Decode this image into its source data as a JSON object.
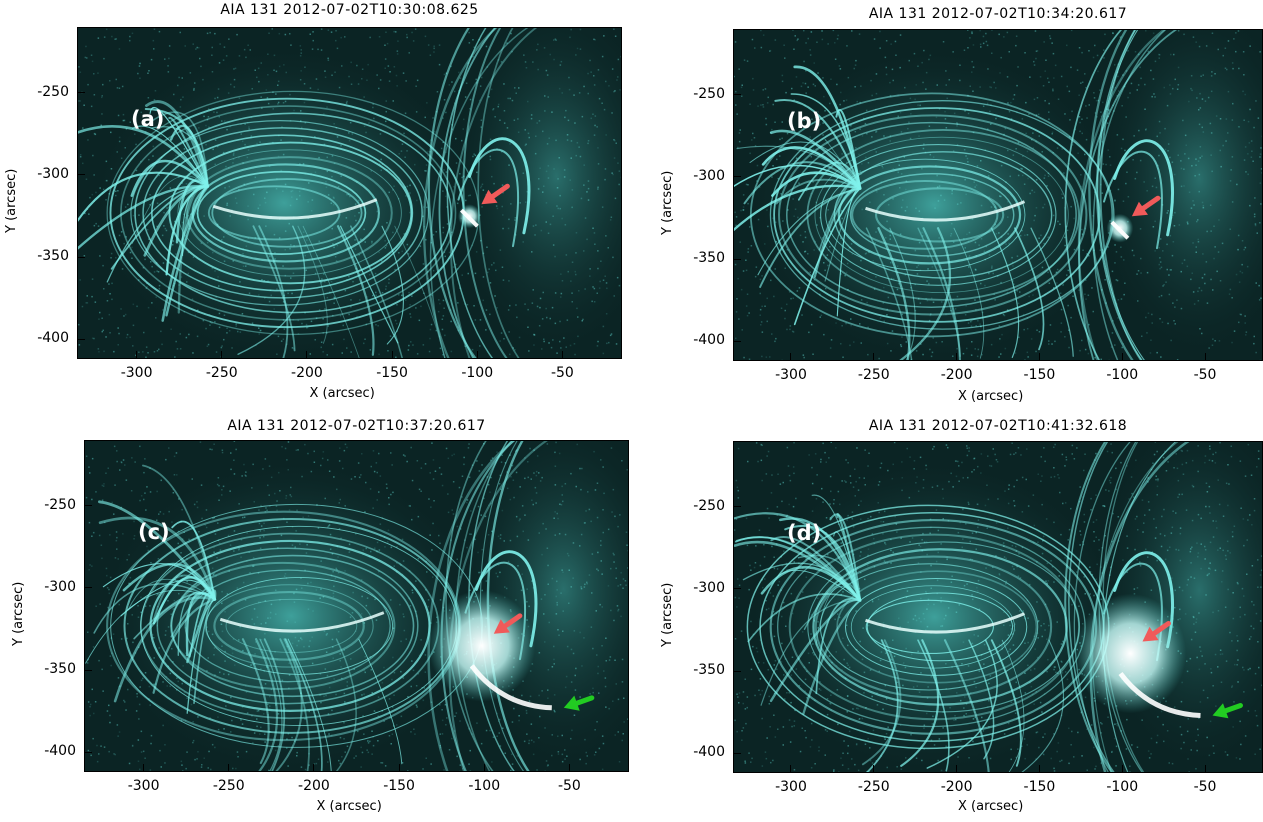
{
  "panels": [
    {
      "title": "AIA 131 2012-07-02T10:30:08.625",
      "label": "(a)",
      "x_ticks": [
        "-300",
        "-250",
        "-200",
        "-150",
        "-100",
        "-50"
      ],
      "y_ticks": [
        "-250",
        "-300",
        "-350",
        "-400"
      ],
      "xlabel": "X (arcsec)",
      "ylabel": "Y (arcsec)",
      "arrows": [
        "red-arrow"
      ]
    },
    {
      "title": "AIA 131 2012-07-02T10:34:20.617",
      "label": "(b)",
      "x_ticks": [
        "-300",
        "-250",
        "-200",
        "-150",
        "-100",
        "-50"
      ],
      "y_ticks": [
        "-250",
        "-300",
        "-350",
        "-400"
      ],
      "xlabel": "X (arcsec)",
      "ylabel": "Y (arcsec)",
      "arrows": [
        "red-arrow"
      ]
    },
    {
      "title": "AIA 131 2012-07-02T10:37:20.617",
      "label": "(c)",
      "x_ticks": [
        "-300",
        "-250",
        "-200",
        "-150",
        "-100",
        "-50"
      ],
      "y_ticks": [
        "-250",
        "-300",
        "-350",
        "-400"
      ],
      "xlabel": "X (arcsec)",
      "ylabel": "Y (arcsec)",
      "arrows": [
        "red-arrow",
        "green-arrow"
      ]
    },
    {
      "title": "AIA 131 2012-07-02T10:41:32.618",
      "label": "(d)",
      "x_ticks": [
        "-300",
        "-250",
        "-200",
        "-150",
        "-100",
        "-50"
      ],
      "y_ticks": [
        "-250",
        "-300",
        "-350",
        "-400"
      ],
      "xlabel": "X (arcsec)",
      "ylabel": "Y (arcsec)",
      "arrows": [
        "red-arrow",
        "green-arrow"
      ]
    }
  ],
  "colors": {
    "image_background": "#0b2424",
    "loop_color": "#7ff2ec",
    "flare_color": "#ffffff",
    "red_arrow": "#f05a5a",
    "green_arrow": "#22cc22"
  }
}
